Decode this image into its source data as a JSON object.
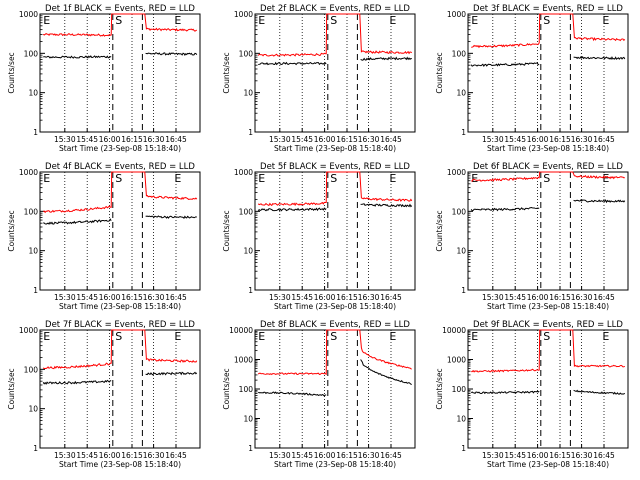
{
  "chart_data": {
    "type": "line",
    "y_scale": "log",
    "x_tick_labels": [
      "15:30",
      "15:45",
      "16:00",
      "16:15",
      "16:30",
      "16:45"
    ],
    "y_tick_labels": [
      "1",
      "10",
      "100",
      "1000"
    ],
    "y_tick_labels_big": [
      "1",
      "10",
      "100",
      "1000",
      "10000"
    ],
    "xlabel": "Start Time (23-Sep-08 15:18:40)",
    "ylabel": "Counts/sec",
    "markers": [
      "E",
      "S",
      "E"
    ],
    "colors": {
      "events": "#000000",
      "lld": "#ff0000",
      "axes": "#000000"
    },
    "panels": [
      {
        "title": "Det 1f BLACK = Events, RED = LLD",
        "ylim": [
          1,
          1000
        ],
        "series": [
          {
            "color": "#ff0000",
            "pre": 300,
            "pre_end": 290,
            "spike": 1000,
            "post": 420,
            "post_end": 390
          },
          {
            "color": "#000000",
            "pre": 80,
            "pre_end": 82,
            "spike": null,
            "post": 100,
            "post_end": 95
          }
        ]
      },
      {
        "title": "Det 2f BLACK = Events, RED = LLD",
        "ylim": [
          1,
          1000
        ],
        "series": [
          {
            "color": "#ff0000",
            "pre": 90,
            "pre_end": 95,
            "spike": 1000,
            "post": 110,
            "post_end": 105
          },
          {
            "color": "#000000",
            "pre": 55,
            "pre_end": 55,
            "spike": null,
            "post": 70,
            "post_end": 75
          }
        ]
      },
      {
        "title": "Det 3f BLACK = Events, RED = LLD",
        "ylim": [
          1,
          1000
        ],
        "series": [
          {
            "color": "#ff0000",
            "pre": 150,
            "pre_end": 175,
            "spike": 1000,
            "post": 250,
            "post_end": 220
          },
          {
            "color": "#000000",
            "pre": 50,
            "pre_end": 55,
            "spike": null,
            "post": 80,
            "post_end": 75
          }
        ]
      },
      {
        "title": "Det 4f BLACK = Events, RED = LLD",
        "ylim": [
          1,
          1000
        ],
        "series": [
          {
            "color": "#ff0000",
            "pre": 100,
            "pre_end": 130,
            "spike": 1000,
            "post": 250,
            "post_end": 210
          },
          {
            "color": "#000000",
            "pre": 50,
            "pre_end": 60,
            "spike": null,
            "post": 75,
            "post_end": 70
          }
        ]
      },
      {
        "title": "Det 5f BLACK = Events, RED = LLD",
        "ylim": [
          1,
          1000
        ],
        "series": [
          {
            "color": "#ff0000",
            "pre": 150,
            "pre_end": 160,
            "spike": 1000,
            "post": 220,
            "post_end": 190
          },
          {
            "color": "#000000",
            "pre": 110,
            "pre_end": 115,
            "spike": null,
            "post": 150,
            "post_end": 140
          }
        ]
      },
      {
        "title": "Det 6f BLACK = Events, RED = LLD",
        "ylim": [
          1,
          1000
        ],
        "series": [
          {
            "color": "#ff0000",
            "pre": 620,
            "pre_end": 720,
            "spike": 1000,
            "post": 800,
            "post_end": 720
          },
          {
            "color": "#000000",
            "pre": 110,
            "pre_end": 120,
            "spike": null,
            "post": 190,
            "post_end": 180
          }
        ]
      },
      {
        "title": "Det 7f BLACK = Events, RED = LLD",
        "ylim": [
          1,
          1000
        ],
        "series": [
          {
            "color": "#ff0000",
            "pre": 110,
            "pre_end": 140,
            "spike": 1000,
            "post": 180,
            "post_end": 160
          },
          {
            "color": "#000000",
            "pre": 45,
            "pre_end": 50,
            "spike": null,
            "post": 75,
            "post_end": 80
          }
        ]
      },
      {
        "title": "Det 8f BLACK = Events, RED = LLD",
        "ylim": [
          1,
          10000
        ],
        "series": [
          {
            "color": "#ff0000",
            "pre": 330,
            "pre_end": 330,
            "spike": 10000,
            "post": 2500,
            "post_end": 500
          },
          {
            "color": "#000000",
            "pre": 75,
            "pre_end": 60,
            "spike": null,
            "post": 1000,
            "post_end": 150
          }
        ]
      },
      {
        "title": "Det 9f BLACK = Events, RED = LLD",
        "ylim": [
          1,
          10000
        ],
        "series": [
          {
            "color": "#ff0000",
            "pre": 400,
            "pre_end": 450,
            "spike": 10000,
            "post": 600,
            "post_end": 600
          },
          {
            "color": "#000000",
            "pre": 75,
            "pre_end": 80,
            "spike": null,
            "post": 90,
            "post_end": 70
          }
        ]
      }
    ]
  }
}
